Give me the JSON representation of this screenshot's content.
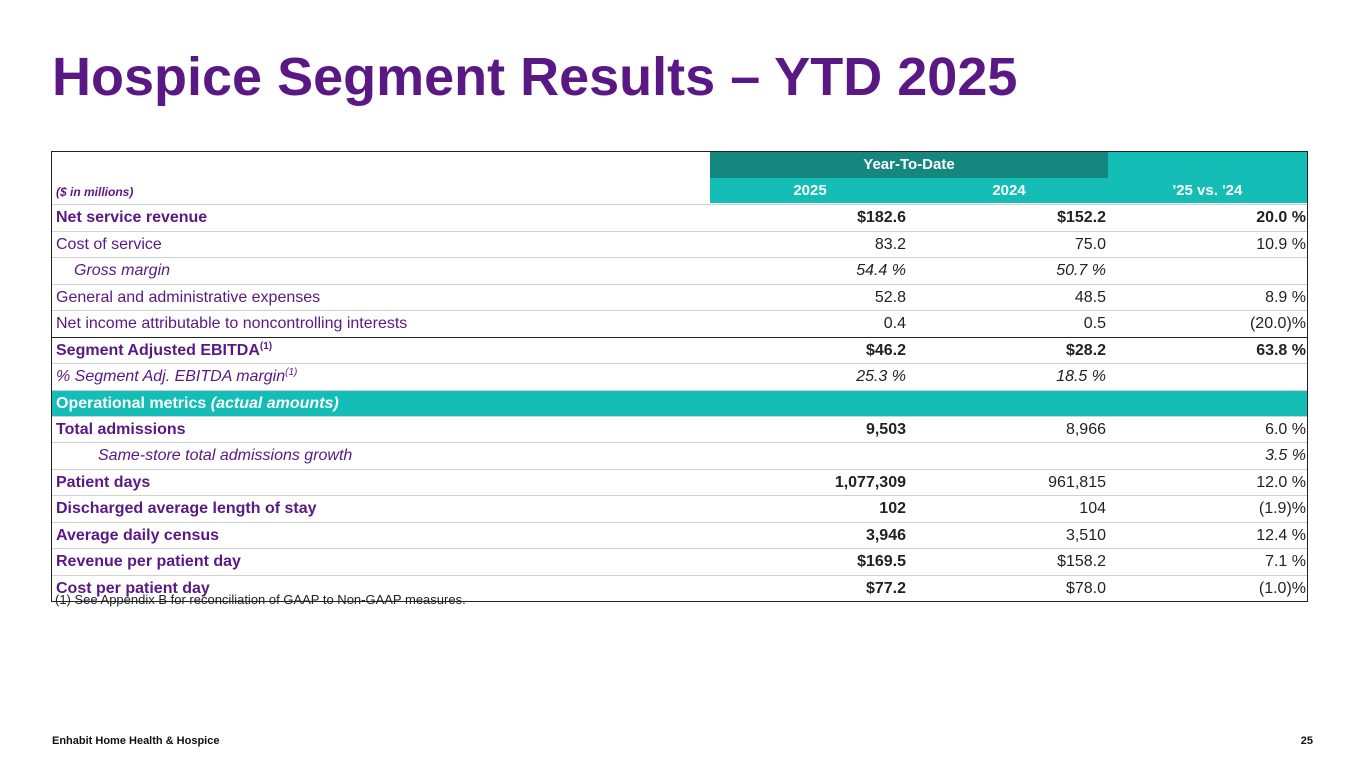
{
  "title": "Hospice Segment Results – YTD 2025",
  "table": {
    "unit_note": "($ in millions)",
    "group_header": "Year-To-Date",
    "col_2025": "2025",
    "col_2024": "2024",
    "col_change": "'25 vs. '24",
    "rows": [
      {
        "label": "Net service revenue",
        "v2025": "$182.6",
        "v2024": "$152.2",
        "change": "20.0 %"
      },
      {
        "label": "Cost of service",
        "v2025": "83.2",
        "v2024": "75.0",
        "change": "10.9 %"
      },
      {
        "label": "Gross margin",
        "v2025": "54.4 %",
        "v2024": "50.7 %",
        "change": ""
      },
      {
        "label": "General and administrative expenses",
        "v2025": "52.8",
        "v2024": "48.5",
        "change": "8.9 %"
      },
      {
        "label": "Net income attributable to noncontrolling interests",
        "v2025": "0.4",
        "v2024": "0.5",
        "change": "(20.0)%"
      },
      {
        "label": "Segment Adjusted EBITDA",
        "sup": "(1)",
        "v2025": "$46.2",
        "v2024": "$28.2",
        "change": "63.8 %"
      },
      {
        "label": "% Segment Adj. EBITDA margin",
        "sup": "(1)",
        "v2025": "25.3 %",
        "v2024": "18.5 %",
        "change": ""
      }
    ],
    "section": {
      "label": "Operational metrics",
      "label_italic": "(actual amounts)"
    },
    "metrics": [
      {
        "label": "Total admissions",
        "v2025": "9,503",
        "v2024": "8,966",
        "change": "6.0 %"
      },
      {
        "label": "Same-store total admissions growth",
        "v2025": "",
        "v2024": "",
        "change": "3.5 %"
      },
      {
        "label": "Patient days",
        "v2025": "1,077,309",
        "v2024": "961,815",
        "change": "12.0 %"
      },
      {
        "label": "Discharged average length of stay",
        "v2025": "102",
        "v2024": "104",
        "change": "(1.9)%"
      },
      {
        "label": "Average daily census",
        "v2025": "3,946",
        "v2024": "3,510",
        "change": "12.4 %"
      },
      {
        "label": "Revenue per patient day",
        "v2025": "$169.5",
        "v2024": "$158.2",
        "change": "7.1 %"
      },
      {
        "label": "Cost per patient day",
        "v2025": "$77.2",
        "v2024": "$78.0",
        "change": "(1.0)%"
      }
    ]
  },
  "footnote": "(1) See Appendix B for reconciliation of GAAP to Non-GAAP measures.",
  "footer": {
    "company": "Enhabit Home Health & Hospice",
    "page": "25"
  }
}
